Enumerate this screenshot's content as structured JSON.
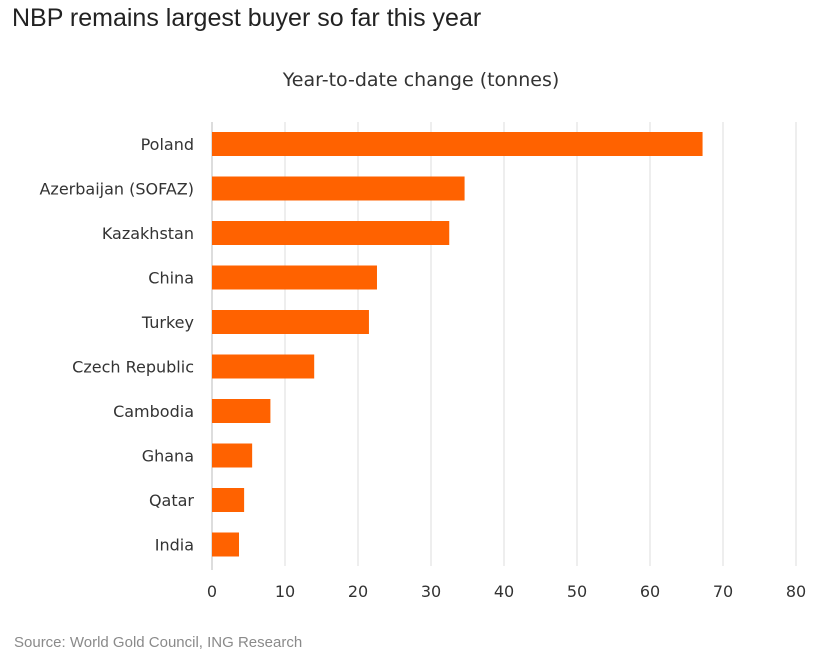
{
  "title": "NBP remains largest buyer so far this year",
  "source": "Source: World Gold Council, ING Research",
  "colors": {
    "bar": "#FF6200",
    "grid": "#dddddd",
    "axis": "#bbbbbb"
  },
  "chart_data": {
    "type": "bar",
    "orientation": "horizontal",
    "title": "Year-to-date change (tonnes)",
    "categories": [
      "Poland",
      "Azerbaijan (SOFAZ)",
      "Kazakhstan",
      "China",
      "Turkey",
      "Czech Republic",
      "Cambodia",
      "Ghana",
      "Qatar",
      "India"
    ],
    "values": [
      67.2,
      34.6,
      32.5,
      22.6,
      21.5,
      14.0,
      8.0,
      5.5,
      4.4,
      3.7
    ],
    "xlim": [
      0,
      80
    ],
    "xticks": [
      0,
      10,
      20,
      30,
      40,
      50,
      60,
      70,
      80
    ],
    "xlabel": "",
    "ylabel": "",
    "grid": true
  }
}
